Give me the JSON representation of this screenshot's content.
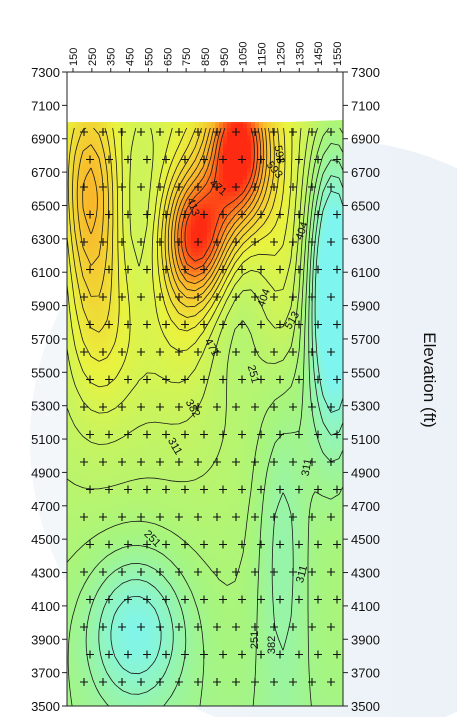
{
  "chart_data": {
    "type": "heatmap",
    "title": "",
    "xlabel": "",
    "ylabel": "Elevation (ft)",
    "x_ticks": [
      "150",
      "250",
      "350",
      "450",
      "550",
      "650",
      "750",
      "850",
      "950",
      "1050",
      "1150",
      "1250",
      "1350",
      "1450",
      "1550"
    ],
    "y_ticks": [
      7300,
      7100,
      6900,
      6700,
      6500,
      6300,
      6100,
      5900,
      5700,
      5500,
      5300,
      5100,
      4900,
      4700,
      4500,
      4300,
      4100,
      3900,
      3700,
      3500
    ],
    "ylim": [
      3500,
      7300
    ],
    "y_axes": [
      "left",
      "right"
    ],
    "colormap": [
      "#7ff5ef",
      "#a6f57f",
      "#e9f33f",
      "#f9b72a",
      "#ff2a12"
    ],
    "contour_labels": [
      "251",
      "251",
      "311",
      "382",
      "413",
      "404",
      "311",
      "404",
      "471",
      "593",
      "593",
      "513",
      "471",
      "382",
      "311",
      "251"
    ]
  }
}
